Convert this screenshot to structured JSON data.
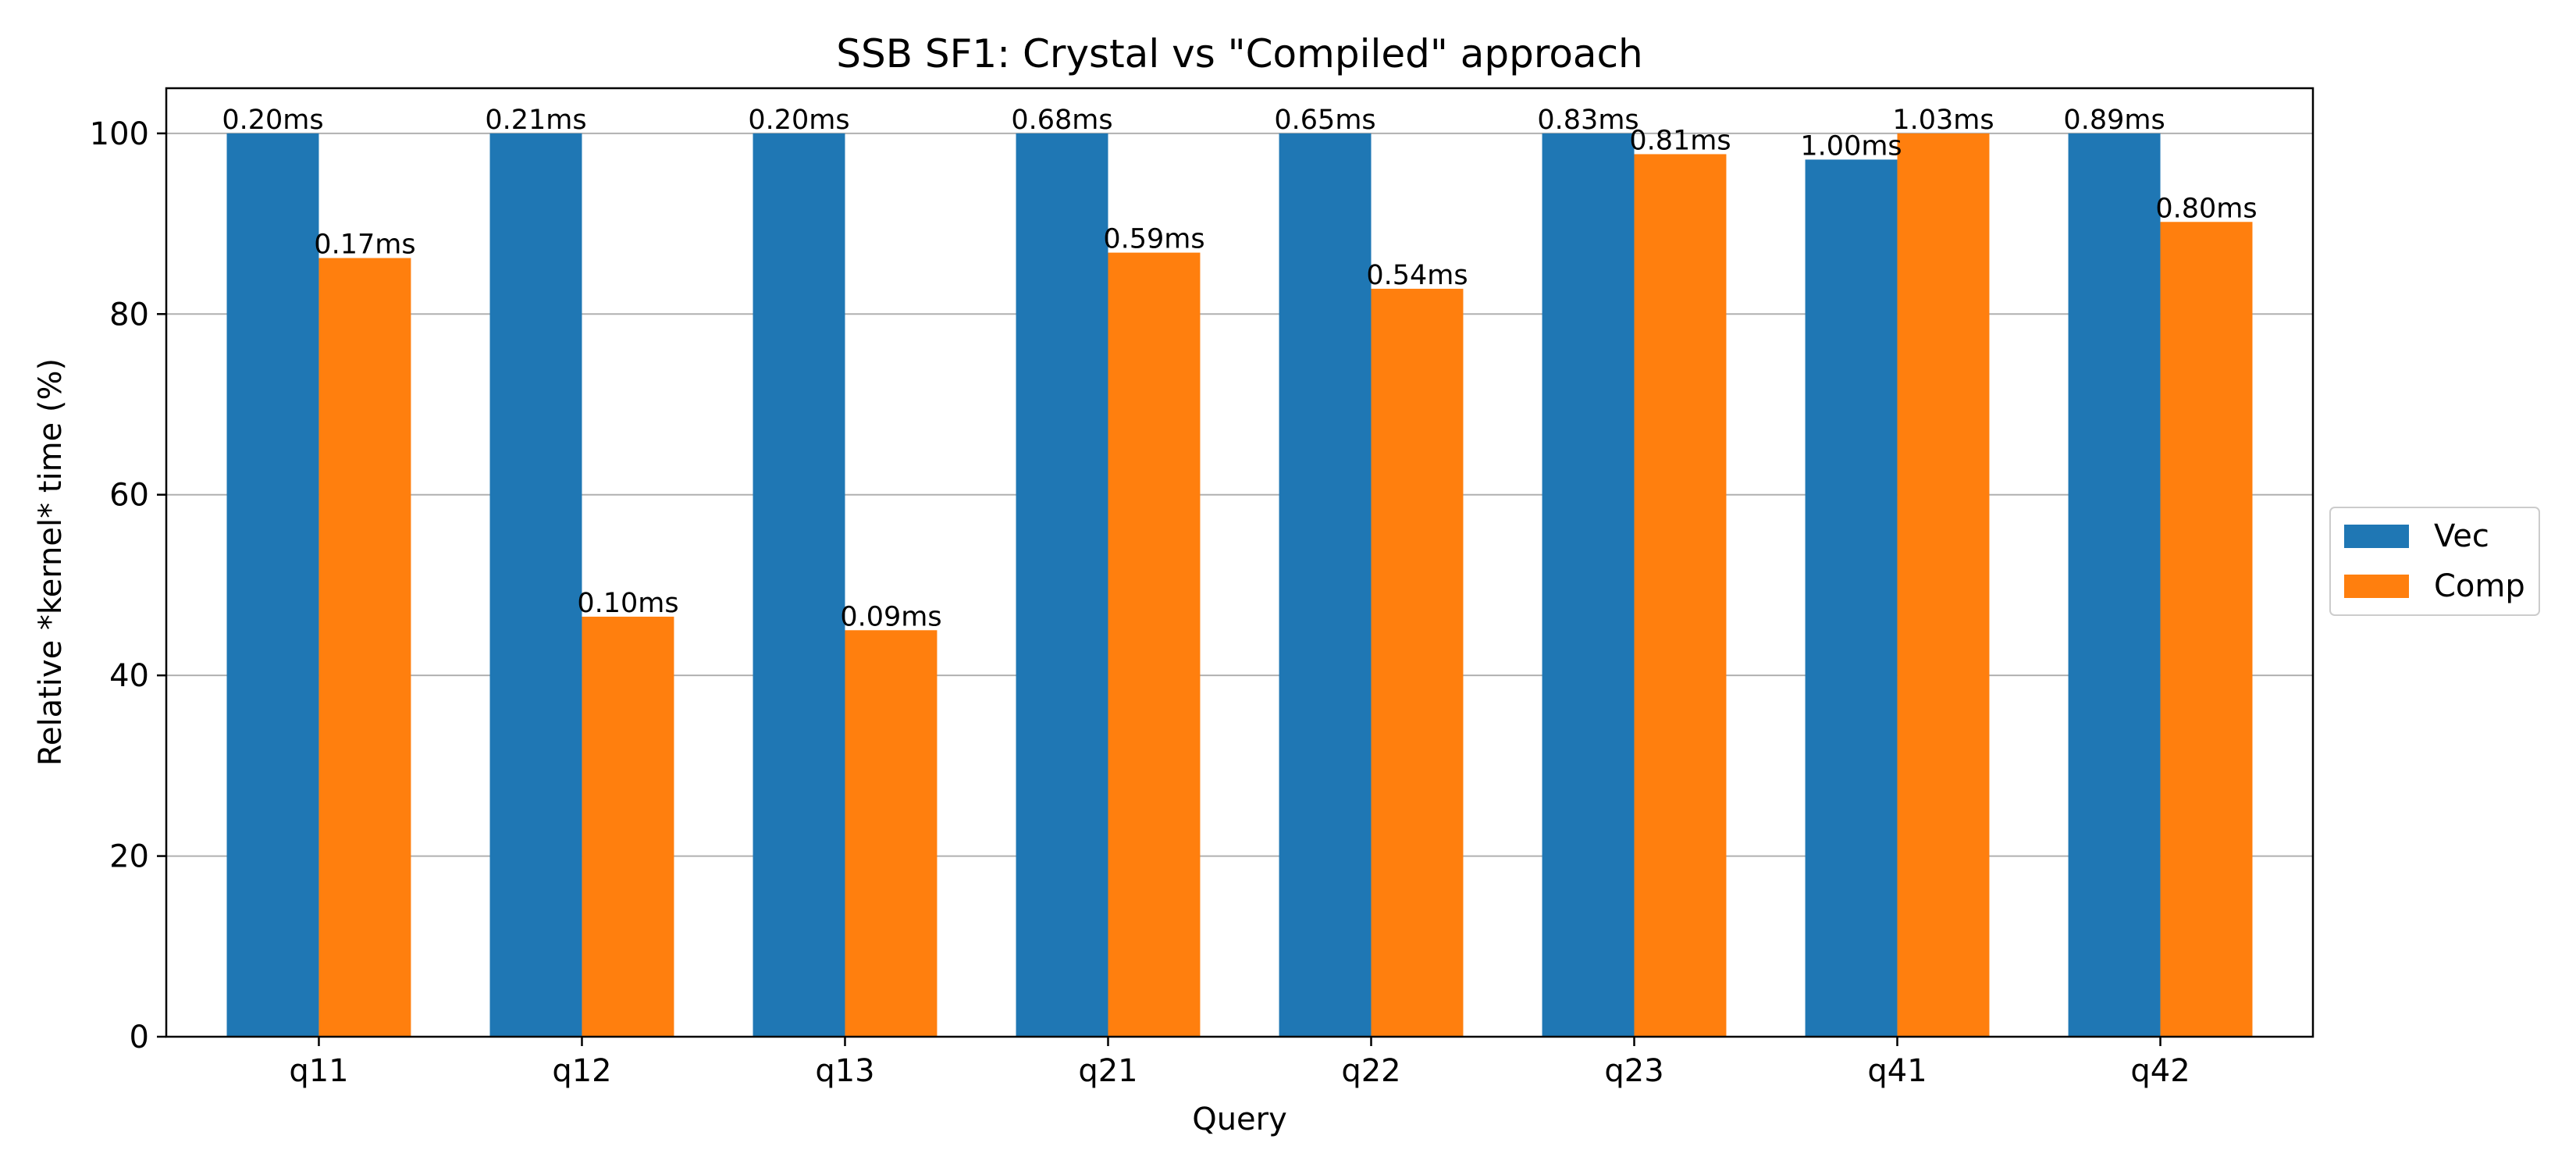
{
  "chart_data": {
    "type": "bar",
    "title": "SSB SF1: Crystal vs \"Compiled\" approach",
    "xlabel": "Query",
    "ylabel": "Relative *kernel* time (%)",
    "categories": [
      "q11",
      "q12",
      "q13",
      "q21",
      "q22",
      "q23",
      "q41",
      "q42"
    ],
    "series": [
      {
        "name": "Vec",
        "color": "#1f77b4",
        "values": [
          100,
          100,
          100,
          100,
          100,
          100,
          97.1,
          100
        ],
        "labels": [
          "0.20ms",
          "0.21ms",
          "0.20ms",
          "0.68ms",
          "0.65ms",
          "0.83ms",
          "1.00ms",
          "0.89ms"
        ]
      },
      {
        "name": "Comp",
        "color": "#ff7f0e",
        "values": [
          86.2,
          46.5,
          45.0,
          86.8,
          82.8,
          97.7,
          100,
          90.2
        ],
        "labels": [
          "0.17ms",
          "0.10ms",
          "0.09ms",
          "0.59ms",
          "0.54ms",
          "0.81ms",
          "1.03ms",
          "0.80ms"
        ]
      }
    ],
    "ylim": [
      0,
      105
    ],
    "yticks": [
      0,
      20,
      40,
      60,
      80,
      100
    ],
    "grid": "y",
    "legend_position": "right-outside"
  }
}
